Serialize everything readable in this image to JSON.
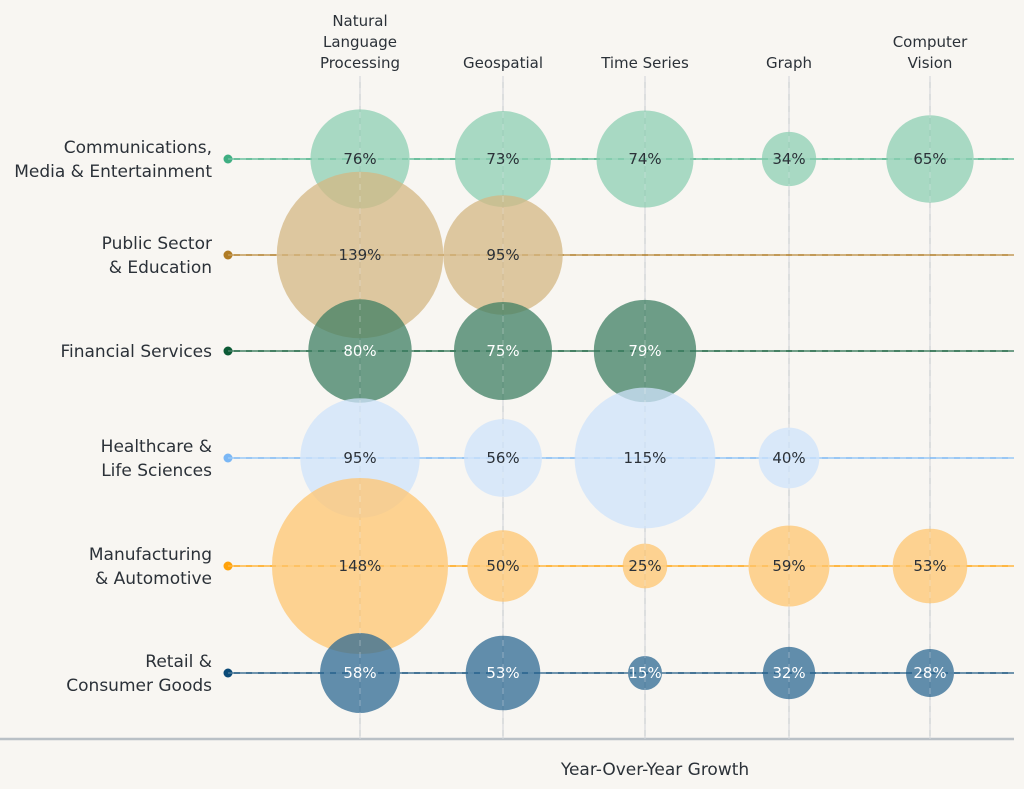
{
  "chart_data": {
    "type": "bubble",
    "xlabel": "Year-Over-Year Growth",
    "categories": [
      [
        "Natural",
        "Language",
        "Processing"
      ],
      [
        "Geospatial"
      ],
      [
        "Time Series"
      ],
      [
        "Graph"
      ],
      [
        "Computer",
        "Vision"
      ]
    ],
    "series": [
      {
        "name": [
          "Communications,",
          "Media & Entertainment"
        ],
        "color": "#3fae82",
        "bubble_color": "#8ecfb3",
        "text_color": "#2b3138",
        "values": [
          76,
          73,
          74,
          34,
          65
        ]
      },
      {
        "name": [
          "Public Sector",
          "& Education"
        ],
        "color": "#b07c25",
        "bubble_color": "#d4b783",
        "text_color": "#2b3138",
        "values": [
          139,
          95,
          null,
          null,
          null
        ]
      },
      {
        "name": [
          "Financial Services"
        ],
        "color": "#0b5a35",
        "bubble_color": "#3f7f63",
        "text_color": "#ffffff",
        "values": [
          80,
          75,
          79,
          null,
          null
        ]
      },
      {
        "name": [
          "Healthcare &",
          "Life Sciences"
        ],
        "color": "#7ab7f5",
        "bubble_color": "#cfe3fb",
        "text_color": "#2b3138",
        "values": [
          95,
          56,
          115,
          40,
          null
        ]
      },
      {
        "name": [
          "Manufacturing",
          "& Automotive"
        ],
        "color": "#ffa20a",
        "bubble_color": "#ffc670",
        "text_color": "#2b3138",
        "values": [
          148,
          50,
          25,
          59,
          53
        ]
      },
      {
        "name": [
          "Retail &",
          "Consumer Goods"
        ],
        "color": "#0b4a77",
        "bubble_color": "#2f6a93",
        "text_color": "#ffffff",
        "values": [
          58,
          53,
          15,
          32,
          28
        ]
      }
    ],
    "value_format": "{v}%",
    "grid": true
  }
}
